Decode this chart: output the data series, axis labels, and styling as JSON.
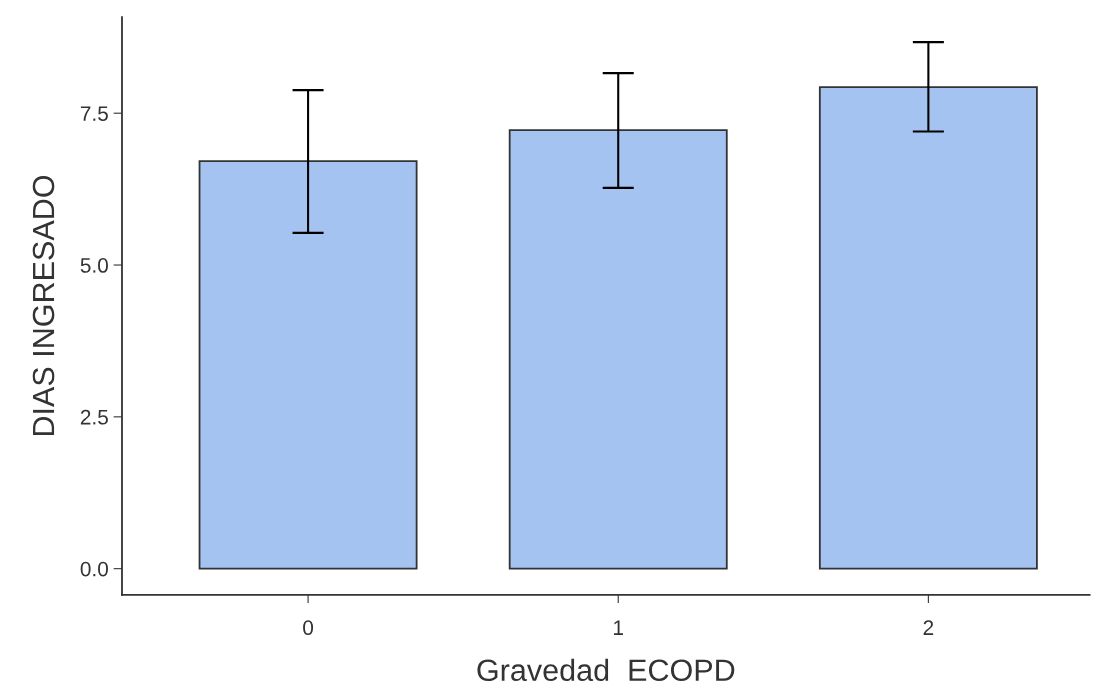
{
  "chart_data": {
    "type": "bar",
    "xlabel": "Gravedad  ECOPD",
    "ylabel": "DIAS INGRESADO",
    "categories": [
      "0",
      "1",
      "2"
    ],
    "series": [
      {
        "color": "#a4c3f0",
        "values": [
          6.71,
          7.22,
          7.93
        ],
        "errors": [
          [
            5.53,
            7.88
          ],
          [
            6.27,
            8.16
          ],
          [
            7.2,
            8.67
          ]
        ]
      }
    ],
    "ylim": [
      -0.43,
      9.08
    ],
    "yticks": [
      {
        "value": 0,
        "label": "0.0"
      },
      {
        "value": 2.5,
        "label": "2.5"
      },
      {
        "value": 5,
        "label": "5.0"
      },
      {
        "value": 7.5,
        "label": "7.5"
      }
    ],
    "grid": false,
    "legend": false
  }
}
